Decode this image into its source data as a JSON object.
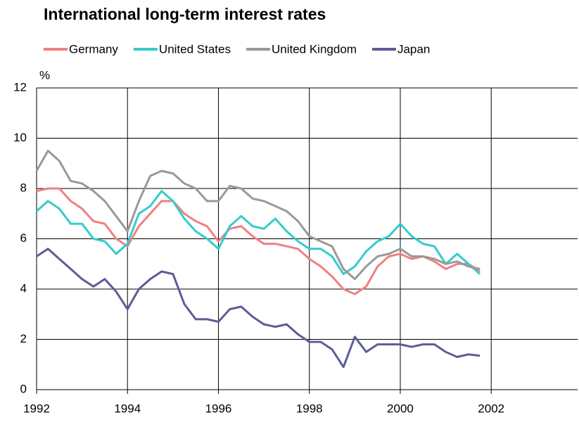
{
  "chart_data": {
    "type": "line",
    "title": "International long-term interest rates",
    "y_label": "%",
    "x": [
      1992,
      1992.25,
      1992.5,
      1992.75,
      1993,
      1993.25,
      1993.5,
      1993.75,
      1994,
      1994.25,
      1994.5,
      1994.75,
      1995,
      1995.25,
      1995.5,
      1995.75,
      1996,
      1996.25,
      1996.5,
      1996.75,
      1997,
      1997.25,
      1997.5,
      1997.75,
      1998,
      1998.25,
      1998.5,
      1998.75,
      1999,
      1999.25,
      1999.5,
      1999.75,
      2000,
      2000.25,
      2000.5,
      2000.75,
      2001,
      2001.25,
      2001.5,
      2001.75
    ],
    "series": [
      {
        "name": "Germany",
        "color": "#f08080",
        "values": [
          7.9,
          8.0,
          8.0,
          7.5,
          7.2,
          6.7,
          6.6,
          6.0,
          5.7,
          6.5,
          7.0,
          7.5,
          7.5,
          7.0,
          6.7,
          6.5,
          5.9,
          6.4,
          6.5,
          6.1,
          5.8,
          5.8,
          5.7,
          5.6,
          5.2,
          4.9,
          4.5,
          4.0,
          3.8,
          4.1,
          4.9,
          5.3,
          5.4,
          5.2,
          5.3,
          5.1,
          4.8,
          5.0,
          5.0,
          4.7
        ]
      },
      {
        "name": "United States",
        "color": "#33cccc",
        "values": [
          7.1,
          7.5,
          7.2,
          6.6,
          6.6,
          6.0,
          5.9,
          5.4,
          5.8,
          7.0,
          7.3,
          7.9,
          7.5,
          6.8,
          6.3,
          6.0,
          5.6,
          6.5,
          6.9,
          6.5,
          6.4,
          6.8,
          6.3,
          5.9,
          5.6,
          5.6,
          5.3,
          4.6,
          4.9,
          5.5,
          5.9,
          6.1,
          6.6,
          6.1,
          5.8,
          5.7,
          5.0,
          5.4,
          5.0,
          4.6
        ]
      },
      {
        "name": "United Kingdom",
        "color": "#999999",
        "values": [
          8.7,
          9.5,
          9.1,
          8.3,
          8.2,
          7.9,
          7.5,
          6.9,
          6.3,
          7.5,
          8.5,
          8.7,
          8.6,
          8.2,
          8.0,
          7.5,
          7.5,
          8.1,
          8.0,
          7.6,
          7.5,
          7.3,
          7.1,
          6.7,
          6.1,
          5.9,
          5.7,
          4.8,
          4.4,
          4.9,
          5.3,
          5.4,
          5.6,
          5.3,
          5.3,
          5.2,
          5.0,
          5.1,
          4.9,
          4.8
        ]
      },
      {
        "name": "Japan",
        "color": "#5c5c99",
        "values": [
          5.3,
          5.6,
          5.2,
          4.8,
          4.4,
          4.1,
          4.4,
          3.9,
          3.2,
          4.0,
          4.4,
          4.7,
          4.6,
          3.4,
          2.8,
          2.8,
          2.7,
          3.2,
          3.3,
          2.9,
          2.6,
          2.5,
          2.6,
          2.2,
          1.9,
          1.9,
          1.6,
          0.9,
          2.1,
          1.5,
          1.8,
          1.8,
          1.8,
          1.7,
          1.8,
          1.8,
          1.5,
          1.3,
          1.4,
          1.35
        ]
      }
    ],
    "xlim": [
      1992,
      2003.9
    ],
    "xticks": [
      1992,
      1994,
      1996,
      1998,
      2000,
      2002
    ],
    "ylim": [
      0,
      12
    ],
    "yticks": [
      0,
      2,
      4,
      6,
      8,
      10,
      12
    ],
    "grid": true
  }
}
